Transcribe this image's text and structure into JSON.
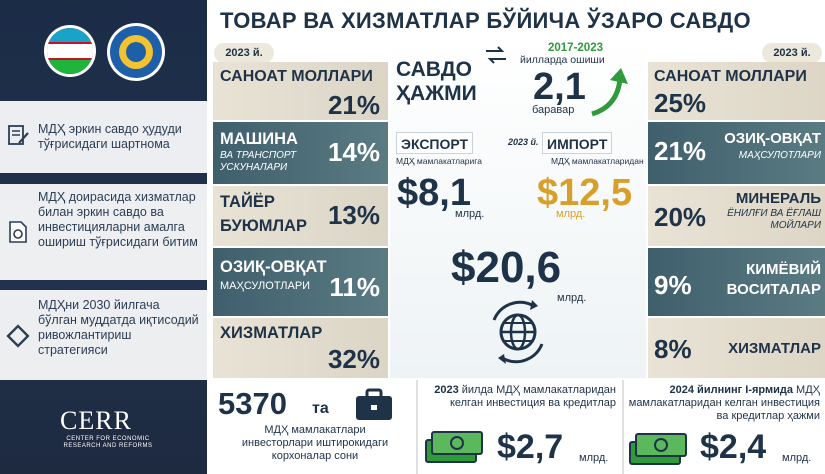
{
  "title": "ТОВАР ВА ХИЗМАТЛАР БЎЙИЧА ЎЗАРО САВДО",
  "left_panel": {
    "items": [
      {
        "text": "МДҲ эркин савдо  ҳудуди тўғрисидаги шартнома",
        "icon": "document-pen-icon"
      },
      {
        "text": "МДҲ доирасида хизматлар билан эркин савдо ва инвестицияларни амалга ошириш тўғрисидаги битим",
        "icon": "document-cycle-icon"
      },
      {
        "text": "МДҲни 2030 йилгача бўлган муддатда иқтисодий ривожлантириш стратегияси",
        "icon": "diamond-icon"
      }
    ],
    "logo_text": "CERR",
    "logo_sub": "CENTER FOR ECONOMIC RESEARCH AND REFORMS"
  },
  "year_left": "2023 й.",
  "year_right": "2023 й.",
  "exports": [
    {
      "name": "САНОАТ МОЛЛАРИ",
      "sub": "",
      "pct": "21%"
    },
    {
      "name": "МАШИНА",
      "sub": "ВА ТРАНСПОРТ УСКУНАЛАРИ",
      "pct": "14%"
    },
    {
      "name": "ТАЙЁР БУЮМЛАР",
      "sub": "",
      "pct": "13%"
    },
    {
      "name": "ОЗИҚ-ОВҚАТ",
      "sub": "МАҲСУЛОТЛАРИ",
      "pct": "11%"
    },
    {
      "name": "ХИЗМАТЛАР",
      "sub": "",
      "pct": "32%"
    }
  ],
  "imports": [
    {
      "name": "САНОАТ МОЛЛАРИ",
      "sub": "",
      "pct": "25%"
    },
    {
      "name": "ОЗИҚ-ОВҚАТ",
      "sub": "МАҲСУЛОТЛАРИ",
      "pct": "21%"
    },
    {
      "name": "МИНЕРАЛЬ",
      "sub": "ЁНИЛҒИ ВА ЁҒЛАШ МОЙЛАРИ",
      "pct": "20%"
    },
    {
      "name": "КИМЁВИЙ ВОСИТАЛАР",
      "sub": "",
      "pct": "9%"
    },
    {
      "name": "ХИЗМАТЛАР",
      "sub": "",
      "pct": "8%"
    }
  ],
  "center": {
    "volume_l1": "САВДО",
    "volume_l2": "ҲАЖМИ",
    "growth_years": "2017-2023",
    "growth_caption": "йилларда ошиши",
    "growth_value": "2,1",
    "growth_unit": "баравар",
    "export_label": "ЭКСПОРТ",
    "export_sub": "МДҲ мамлакатларига",
    "import_label": "ИМПОРТ",
    "import_sub": "МДҲ мамлакатларидан",
    "year_mid": "2023 й.",
    "export_value": "$8,1",
    "export_unit": "млрд.",
    "import_value": "$12,5",
    "import_unit": "млрд.",
    "total_value": "$20,6",
    "total_unit": "млрд."
  },
  "bottom": {
    "companies_value": "5370",
    "companies_suffix": "та",
    "companies_desc": "МДҲ мамлакатлари инвесторлари иштирокидаги корхоналар сони",
    "inv2023_year": "2023",
    "inv2023_desc": "йилда МДҲ мамлакатларидан келган инвестиция ва кредитлар",
    "inv2023_value": "$2,7",
    "inv2023_unit": "млрд.",
    "inv2024_period": "2024 йилнинг I-ярмида",
    "inv2024_desc": "МДҲ мамлакатларидан келган инвестиция ва кредитлар ҳажми",
    "inv2024_value": "$2,4",
    "inv2024_unit": "млрд."
  },
  "colors": {
    "navy": "#1e3248",
    "green": "#2e9a3a",
    "gold": "#d8a02a",
    "beige": "#e9e3d6",
    "teal": "#4a6b76"
  }
}
